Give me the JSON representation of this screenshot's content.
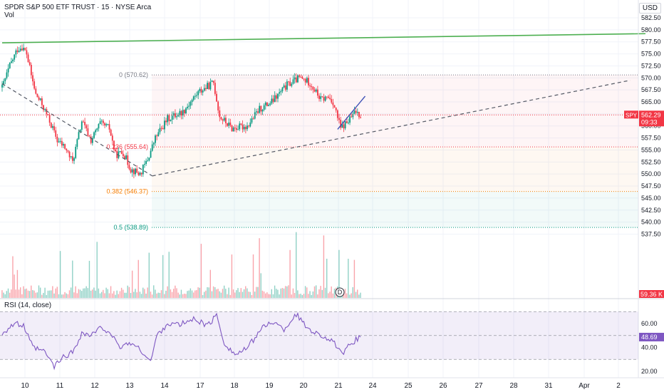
{
  "header": {
    "title": "SPDR S&P 500 ETF TRUST · 15 · NYSE Arca",
    "vol_label": "Vol"
  },
  "currency": "USD",
  "price_axis": {
    "ticks": [
      "582.50",
      "580.00",
      "577.50",
      "575.00",
      "572.50",
      "570.00",
      "567.50",
      "565.00",
      "562.50",
      "560.00",
      "557.50",
      "555.00",
      "552.50",
      "550.00",
      "547.50",
      "545.00",
      "542.50",
      "540.00",
      "537.50"
    ]
  },
  "current_price": {
    "symbol": "SPY",
    "price": "562.29",
    "countdown": "09:33",
    "color": "#f23645"
  },
  "volume_badge": {
    "value": "59.36 K",
    "color": "#f23645"
  },
  "fib_levels": [
    {
      "label": "0 (570.62)",
      "price": 570.62,
      "color": "#787b86"
    },
    {
      "label": "0.236 (555.64)",
      "price": 555.64,
      "color": "#f23645"
    },
    {
      "label": "0.382 (546.37)",
      "price": 546.37,
      "color": "#f57c00"
    },
    {
      "label": "0.5 (538.89)",
      "price": 538.89,
      "color": "#089981"
    }
  ],
  "rsi": {
    "label": "RSI (14, close)",
    "value": "48.69",
    "ticks": [
      "60.00",
      "40.00",
      "20.00"
    ],
    "color": "#7e57c2"
  },
  "x_axis": {
    "labels": [
      "10",
      "11",
      "12",
      "13",
      "14",
      "17",
      "18",
      "19",
      "20",
      "21",
      "24",
      "25",
      "26",
      "27",
      "28",
      "31",
      "Apr",
      "2"
    ]
  },
  "event_marker": "D",
  "colors": {
    "up": "#089981",
    "down": "#f23645",
    "trendline": "#4caf50",
    "support": "#2a2e39"
  },
  "chart_data": {
    "type": "candlestick",
    "title": "SPDR S&P 500 ETF TRUST · 15 · NYSE Arca",
    "ylim": [
      537.5,
      582.5
    ],
    "rsi_ylim": [
      20,
      60
    ],
    "close_path": [
      {
        "i": 0,
        "c": 568.0
      },
      {
        "i": 5,
        "c": 572.5
      },
      {
        "i": 10,
        "c": 576.0
      },
      {
        "i": 13,
        "c": 576.5
      },
      {
        "i": 16,
        "c": 575.0
      },
      {
        "i": 19,
        "c": 570.5
      },
      {
        "i": 22,
        "c": 566.5
      },
      {
        "i": 26,
        "c": 564.5
      },
      {
        "i": 31,
        "c": 561.0
      },
      {
        "i": 36,
        "c": 557.0
      },
      {
        "i": 41,
        "c": 555.5
      },
      {
        "i": 46,
        "c": 552.5
      },
      {
        "i": 52,
        "c": 561.0
      },
      {
        "i": 58,
        "c": 557.0
      },
      {
        "i": 64,
        "c": 560.5
      },
      {
        "i": 70,
        "c": 559.5
      },
      {
        "i": 74,
        "c": 554.0
      },
      {
        "i": 79,
        "c": 554.5
      },
      {
        "i": 84,
        "c": 551.0
      },
      {
        "i": 90,
        "c": 550.0
      },
      {
        "i": 95,
        "c": 553.0
      },
      {
        "i": 100,
        "c": 557.5
      },
      {
        "i": 108,
        "c": 561.5
      },
      {
        "i": 118,
        "c": 563.0
      },
      {
        "i": 128,
        "c": 567.0
      },
      {
        "i": 138,
        "c": 569.0
      },
      {
        "i": 142,
        "c": 562.0
      },
      {
        "i": 150,
        "c": 559.5
      },
      {
        "i": 160,
        "c": 560.0
      },
      {
        "i": 168,
        "c": 563.5
      },
      {
        "i": 176,
        "c": 565.0
      },
      {
        "i": 186,
        "c": 568.5
      },
      {
        "i": 194,
        "c": 570.0
      },
      {
        "i": 201,
        "c": 569.0
      },
      {
        "i": 208,
        "c": 565.5
      },
      {
        "i": 213,
        "c": 566.0
      },
      {
        "i": 216,
        "c": 565.0
      },
      {
        "i": 221,
        "c": 559.5
      },
      {
        "i": 226,
        "c": 561.0
      },
      {
        "i": 231,
        "c": 563.0
      },
      {
        "i": 234,
        "c": 562.3
      }
    ],
    "rsi_path": [
      {
        "i": 0,
        "c": 52
      },
      {
        "i": 8,
        "c": 60
      },
      {
        "i": 14,
        "c": 58
      },
      {
        "i": 20,
        "c": 40
      },
      {
        "i": 28,
        "c": 36
      },
      {
        "i": 34,
        "c": 24
      },
      {
        "i": 40,
        "c": 32
      },
      {
        "i": 46,
        "c": 36
      },
      {
        "i": 52,
        "c": 52
      },
      {
        "i": 58,
        "c": 50
      },
      {
        "i": 64,
        "c": 56
      },
      {
        "i": 70,
        "c": 54
      },
      {
        "i": 76,
        "c": 40
      },
      {
        "i": 84,
        "c": 44
      },
      {
        "i": 92,
        "c": 36
      },
      {
        "i": 97,
        "c": 28
      },
      {
        "i": 101,
        "c": 50
      },
      {
        "i": 108,
        "c": 60
      },
      {
        "i": 116,
        "c": 59
      },
      {
        "i": 126,
        "c": 64
      },
      {
        "i": 134,
        "c": 58
      },
      {
        "i": 140,
        "c": 67
      },
      {
        "i": 145,
        "c": 44
      },
      {
        "i": 152,
        "c": 34
      },
      {
        "i": 160,
        "c": 39
      },
      {
        "i": 168,
        "c": 54
      },
      {
        "i": 176,
        "c": 62
      },
      {
        "i": 184,
        "c": 55
      },
      {
        "i": 192,
        "c": 68
      },
      {
        "i": 198,
        "c": 58
      },
      {
        "i": 205,
        "c": 52
      },
      {
        "i": 212,
        "c": 48
      },
      {
        "i": 218,
        "c": 42
      },
      {
        "i": 222,
        "c": 33
      },
      {
        "i": 228,
        "c": 44
      },
      {
        "i": 234,
        "c": 48.69
      }
    ],
    "annotations": {
      "resistance_line": [
        [
          0,
          577.3
        ],
        [
          420,
          579.2
        ]
      ],
      "lower_channel": [
        [
          219,
          559.3
        ],
        [
          237,
          566.2
        ]
      ],
      "dashed_support_1": [
        [
          0,
          568.8
        ],
        [
          98,
          549.6
        ]
      ],
      "dashed_support_2": [
        [
          98,
          549.6
        ],
        [
          410,
          569.5
        ]
      ]
    }
  }
}
